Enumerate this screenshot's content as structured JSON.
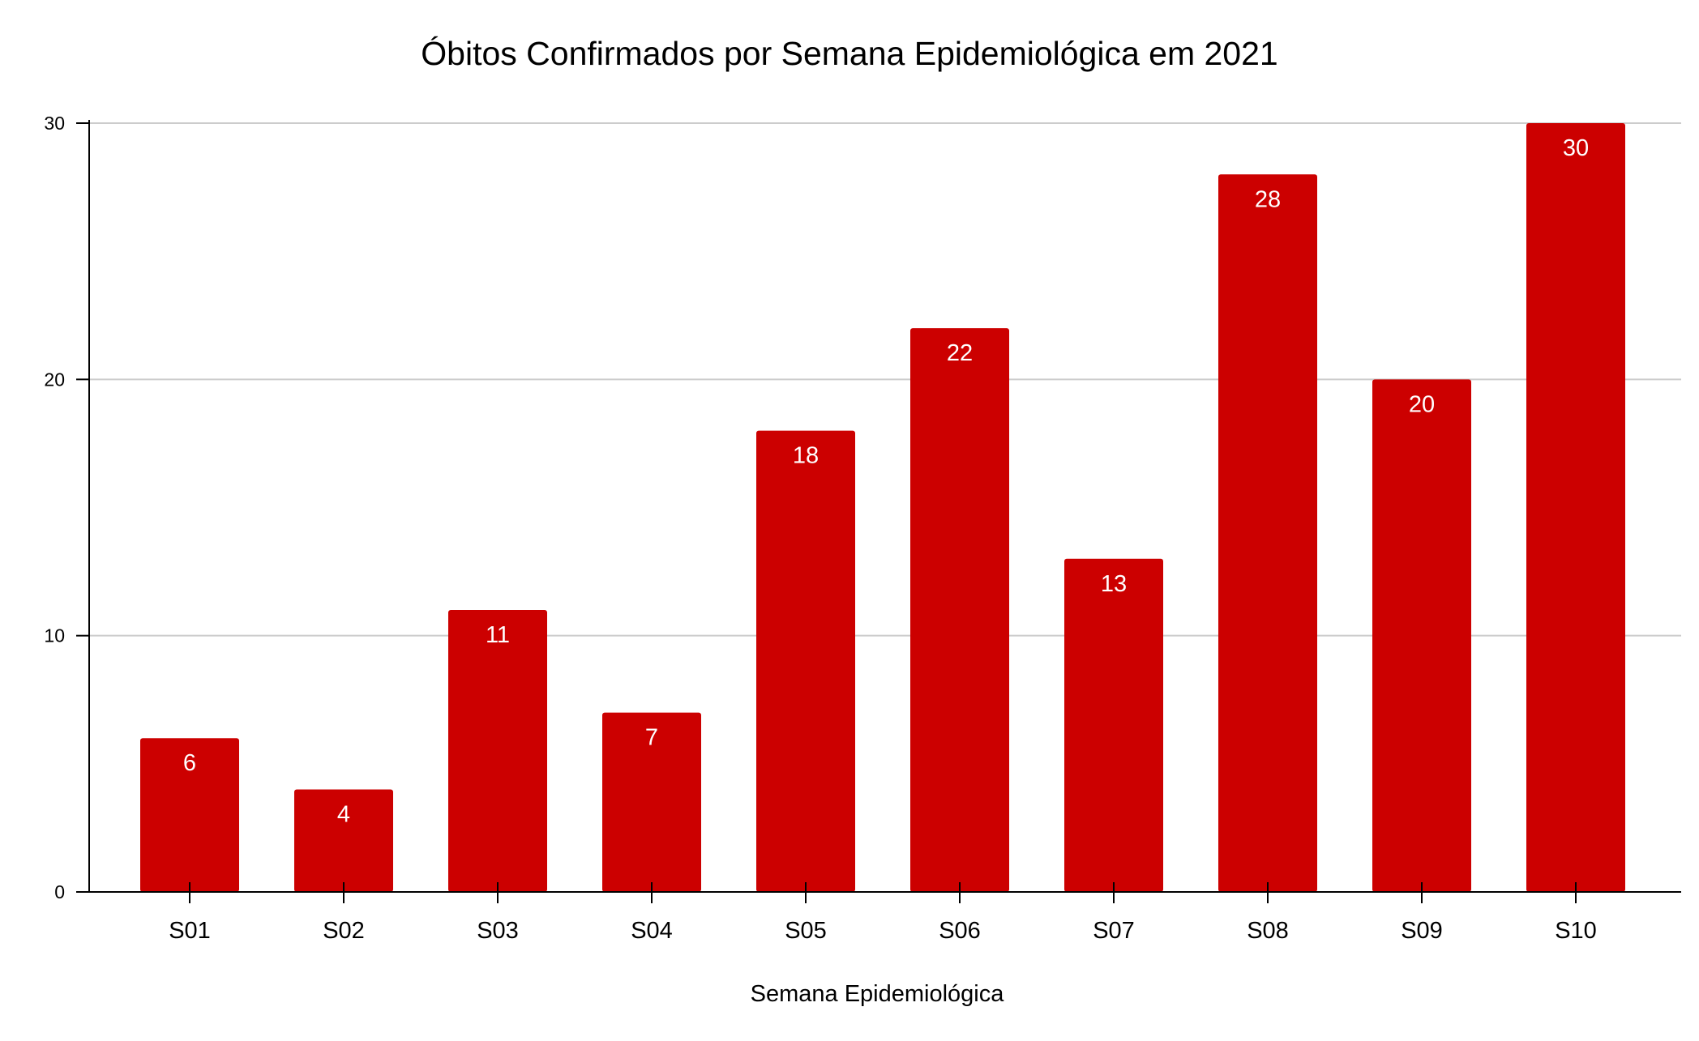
{
  "chart_data": {
    "type": "bar",
    "title": "Óbitos Confirmados por Semana Epidemiológica em 2021",
    "xlabel": "Semana Epidemiológica",
    "ylabel": "",
    "categories": [
      "S01",
      "S02",
      "S03",
      "S04",
      "S05",
      "S06",
      "S07",
      "S08",
      "S09",
      "S10"
    ],
    "values": [
      6,
      4,
      11,
      7,
      18,
      22,
      13,
      28,
      20,
      30
    ],
    "ylim": [
      0,
      30
    ],
    "yticks": [
      0,
      10,
      20,
      30
    ],
    "grid": true,
    "legend": "none",
    "data_labels": true,
    "colors": {
      "bar": "#cc0000",
      "data_label": "#ffffff",
      "grid": "#cccccc",
      "axis": "#000000",
      "text": "#000000"
    }
  }
}
